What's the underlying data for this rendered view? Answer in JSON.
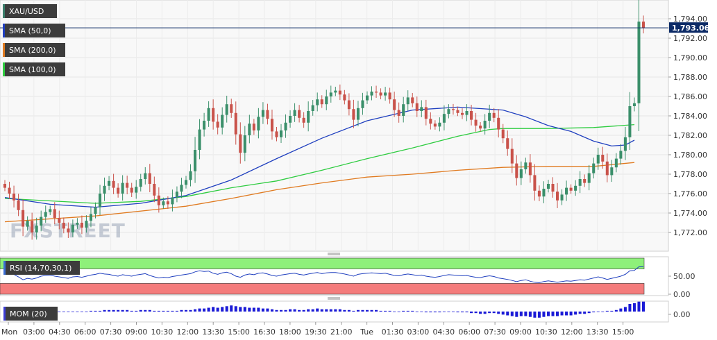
{
  "chart_data": {
    "type": "candlestick",
    "symbol": "XAU/USD",
    "watermark": "FXSTREET",
    "last_price_label": "1,793.06",
    "last_price": 1793.06,
    "price_axis": {
      "ylim": [
        1770.5,
        1795.5
      ],
      "ticks": [
        "1,794.00",
        "1,792.00",
        "1,790.00",
        "1,788.00",
        "1,786.00",
        "1,784.00",
        "1,782.00",
        "1,780.00",
        "1,778.00",
        "1,776.00",
        "1,774.00",
        "1,772.00"
      ],
      "tick_values": [
        1794,
        1792,
        1790,
        1788,
        1786,
        1784,
        1782,
        1780,
        1778,
        1776,
        1774,
        1772
      ]
    },
    "time_axis": {
      "labels": [
        "Mon",
        "03:00",
        "04:30",
        "06:00",
        "07:30",
        "09:00",
        "10:30",
        "12:00",
        "13:30",
        "15:00",
        "16:30",
        "18:00",
        "19:30",
        "21:00",
        "Tue",
        "01:30",
        "03:00",
        "04:30",
        "06:00",
        "07:30",
        "09:00",
        "10:30",
        "12:00",
        "13:30",
        "15:00"
      ]
    },
    "grid": true,
    "legend": [
      {
        "label": "XAU/USD",
        "color": "#3a7d6a"
      },
      {
        "label": "SMA (50,0)",
        "color": "#1f3fbf"
      },
      {
        "label": "SMA (200,0)",
        "color": "#e07a20"
      },
      {
        "label": "SMA (100,0)",
        "color": "#2ecc40"
      }
    ],
    "colors": {
      "up": "#3a8f6a",
      "down": "#c9524a",
      "sma50": "#1f3fbf",
      "sma100": "#2ecc40",
      "sma200": "#e07a20",
      "price_line": "#0b2a66"
    },
    "closes": [
      1776.6,
      1776.0,
      1775.3,
      1774.3,
      1772.6,
      1773.2,
      1772.0,
      1772.7,
      1773.6,
      1774.1,
      1774.4,
      1773.5,
      1773.0,
      1772.4,
      1772.0,
      1772.8,
      1773.0,
      1772.5,
      1773.2,
      1773.9,
      1774.6,
      1776.0,
      1776.8,
      1777.3,
      1776.6,
      1776.0,
      1777.1,
      1776.6,
      1776.1,
      1776.7,
      1777.5,
      1778.1,
      1777.0,
      1775.8,
      1774.8,
      1775.2,
      1774.9,
      1775.6,
      1776.2,
      1776.9,
      1777.4,
      1778.3,
      1780.5,
      1782.6,
      1783.5,
      1784.8,
      1783.4,
      1782.8,
      1784.1,
      1785.2,
      1784.3,
      1782.1,
      1780.2,
      1782.0,
      1783.2,
      1782.5,
      1783.9,
      1784.6,
      1783.7,
      1782.4,
      1781.8,
      1782.5,
      1783.3,
      1784.0,
      1784.6,
      1783.8,
      1783.3,
      1784.5,
      1785.1,
      1785.7,
      1785.2,
      1786.0,
      1786.4,
      1786.6,
      1786.2,
      1785.6,
      1784.7,
      1783.6,
      1784.8,
      1785.6,
      1786.1,
      1786.5,
      1786.4,
      1786.1,
      1786.4,
      1785.7,
      1784.6,
      1784.0,
      1785.2,
      1785.9,
      1785.3,
      1784.5,
      1784.9,
      1783.7,
      1783.2,
      1782.9,
      1783.3,
      1784.2,
      1784.7,
      1784.6,
      1784.3,
      1784.1,
      1784.5,
      1783.6,
      1783.0,
      1782.7,
      1783.5,
      1784.3,
      1783.8,
      1782.6,
      1781.7,
      1780.6,
      1779.1,
      1777.6,
      1778.5,
      1779.2,
      1777.9,
      1776.3,
      1775.7,
      1776.5,
      1777.0,
      1776.2,
      1775.3,
      1775.9,
      1776.6,
      1776.3,
      1776.8,
      1777.5,
      1777.1,
      1778.1,
      1779.1,
      1780.0,
      1779.3,
      1777.9,
      1778.7,
      1779.6,
      1780.4,
      1781.8,
      1785.0,
      1785.3,
      1793.7,
      1793.06
    ],
    "volume_like": [],
    "sma_50": [
      [
        0,
        1775.6
      ],
      [
        10,
        1774.9
      ],
      [
        20,
        1774.6
      ],
      [
        30,
        1775.0
      ],
      [
        40,
        1775.8
      ],
      [
        50,
        1777.4
      ],
      [
        60,
        1779.6
      ],
      [
        70,
        1781.7
      ],
      [
        80,
        1783.5
      ],
      [
        90,
        1784.6
      ],
      [
        100,
        1784.9
      ],
      [
        110,
        1784.6
      ],
      [
        115,
        1783.9
      ],
      [
        120,
        1783.0
      ],
      [
        125,
        1782.4
      ],
      [
        130,
        1781.4
      ],
      [
        134,
        1780.9
      ],
      [
        137,
        1781.0
      ],
      [
        139,
        1781.5
      ]
    ],
    "sma_100": [
      [
        0,
        1775.5
      ],
      [
        20,
        1775.0
      ],
      [
        30,
        1775.2
      ],
      [
        40,
        1775.7
      ],
      [
        50,
        1776.6
      ],
      [
        60,
        1777.3
      ],
      [
        70,
        1778.4
      ],
      [
        80,
        1779.6
      ],
      [
        90,
        1780.7
      ],
      [
        100,
        1781.9
      ],
      [
        107,
        1782.6
      ],
      [
        110,
        1782.7
      ],
      [
        120,
        1782.7
      ],
      [
        130,
        1782.8
      ],
      [
        139,
        1783.1
      ]
    ],
    "sma_200": [
      [
        0,
        1773.1
      ],
      [
        20,
        1773.7
      ],
      [
        40,
        1774.7
      ],
      [
        50,
        1775.5
      ],
      [
        60,
        1776.4
      ],
      [
        70,
        1777.1
      ],
      [
        80,
        1777.7
      ],
      [
        90,
        1778.0
      ],
      [
        100,
        1778.4
      ],
      [
        110,
        1778.7
      ],
      [
        120,
        1778.8
      ],
      [
        130,
        1778.8
      ],
      [
        139,
        1779.2
      ]
    ],
    "rsi": {
      "label": "RSI (14,70,30,1)",
      "ticks": [
        "50.00",
        "0.00"
      ],
      "tick_values": [
        50,
        0
      ],
      "ylim": [
        0,
        100
      ],
      "overbought": 70,
      "oversold": 30,
      "values": [
        62,
        58,
        55,
        48,
        40,
        44,
        42,
        45,
        50,
        52,
        53,
        50,
        48,
        46,
        44,
        48,
        49,
        47,
        50,
        53,
        55,
        58,
        56,
        55,
        52,
        50,
        54,
        52,
        50,
        53,
        55,
        57,
        52,
        48,
        45,
        47,
        46,
        49,
        51,
        53,
        55,
        57,
        62,
        65,
        63,
        64,
        58,
        55,
        59,
        61,
        57,
        50,
        47,
        53,
        56,
        54,
        58,
        59,
        56,
        52,
        50,
        53,
        55,
        57,
        58,
        55,
        53,
        56,
        58,
        60,
        57,
        59,
        60,
        60,
        58,
        56,
        53,
        50,
        55,
        57,
        58,
        59,
        58,
        57,
        58,
        55,
        52,
        51,
        54,
        56,
        54,
        52,
        53,
        50,
        48,
        47,
        49,
        52,
        54,
        53,
        52,
        51,
        52,
        49,
        47,
        46,
        49,
        51,
        49,
        45,
        43,
        41,
        38,
        35,
        38,
        40,
        36,
        33,
        32,
        35,
        37,
        35,
        33,
        35,
        37,
        36,
        38,
        40,
        39,
        42,
        45,
        48,
        45,
        41,
        44,
        47,
        50,
        55,
        65,
        66,
        76,
        76
      ]
    },
    "momentum": {
      "label": "MOM (20)",
      "ticks": [
        "0.00"
      ],
      "tick_values": [
        0
      ],
      "values": [
        0.2,
        0.2,
        0.1,
        0.1,
        0.0,
        0.1,
        0.0,
        0.0,
        0.1,
        0.1,
        0.1,
        0.1,
        0.0,
        0.0,
        0.0,
        0.0,
        0.0,
        0.0,
        0.0,
        0.1,
        0.1,
        0.1,
        0.2,
        0.2,
        0.2,
        0.2,
        0.2,
        0.2,
        0.1,
        0.1,
        0.2,
        0.2,
        0.2,
        0.1,
        0.1,
        0.1,
        0.1,
        0.1,
        0.1,
        0.2,
        0.2,
        0.2,
        0.3,
        0.4,
        0.4,
        0.5,
        0.6,
        0.5,
        0.6,
        0.7,
        0.8,
        0.7,
        0.6,
        0.6,
        0.5,
        0.5,
        0.5,
        0.4,
        0.4,
        0.3,
        0.2,
        0.2,
        0.2,
        0.3,
        0.3,
        0.2,
        0.2,
        0.3,
        0.3,
        0.4,
        0.3,
        0.3,
        0.3,
        0.3,
        0.3,
        0.2,
        0.2,
        0.1,
        0.2,
        0.2,
        0.2,
        0.2,
        0.2,
        0.1,
        0.1,
        0.1,
        0.0,
        0.0,
        0.1,
        0.1,
        0.1,
        0.0,
        0.0,
        -0.1,
        -0.1,
        -0.1,
        -0.1,
        0.0,
        0.0,
        0.0,
        -0.1,
        -0.1,
        -0.1,
        -0.2,
        -0.2,
        -0.3,
        -0.3,
        -0.2,
        -0.2,
        -0.3,
        -0.4,
        -0.5,
        -0.6,
        -0.7,
        -0.6,
        -0.6,
        -0.7,
        -0.8,
        -0.8,
        -0.7,
        -0.6,
        -0.6,
        -0.6,
        -0.5,
        -0.5,
        -0.5,
        -0.4,
        -0.3,
        -0.3,
        -0.2,
        -0.1,
        0.0,
        0.0,
        0.1,
        0.1,
        0.2,
        0.4,
        0.6,
        1.0,
        1.1,
        1.3,
        1.3
      ]
    }
  }
}
